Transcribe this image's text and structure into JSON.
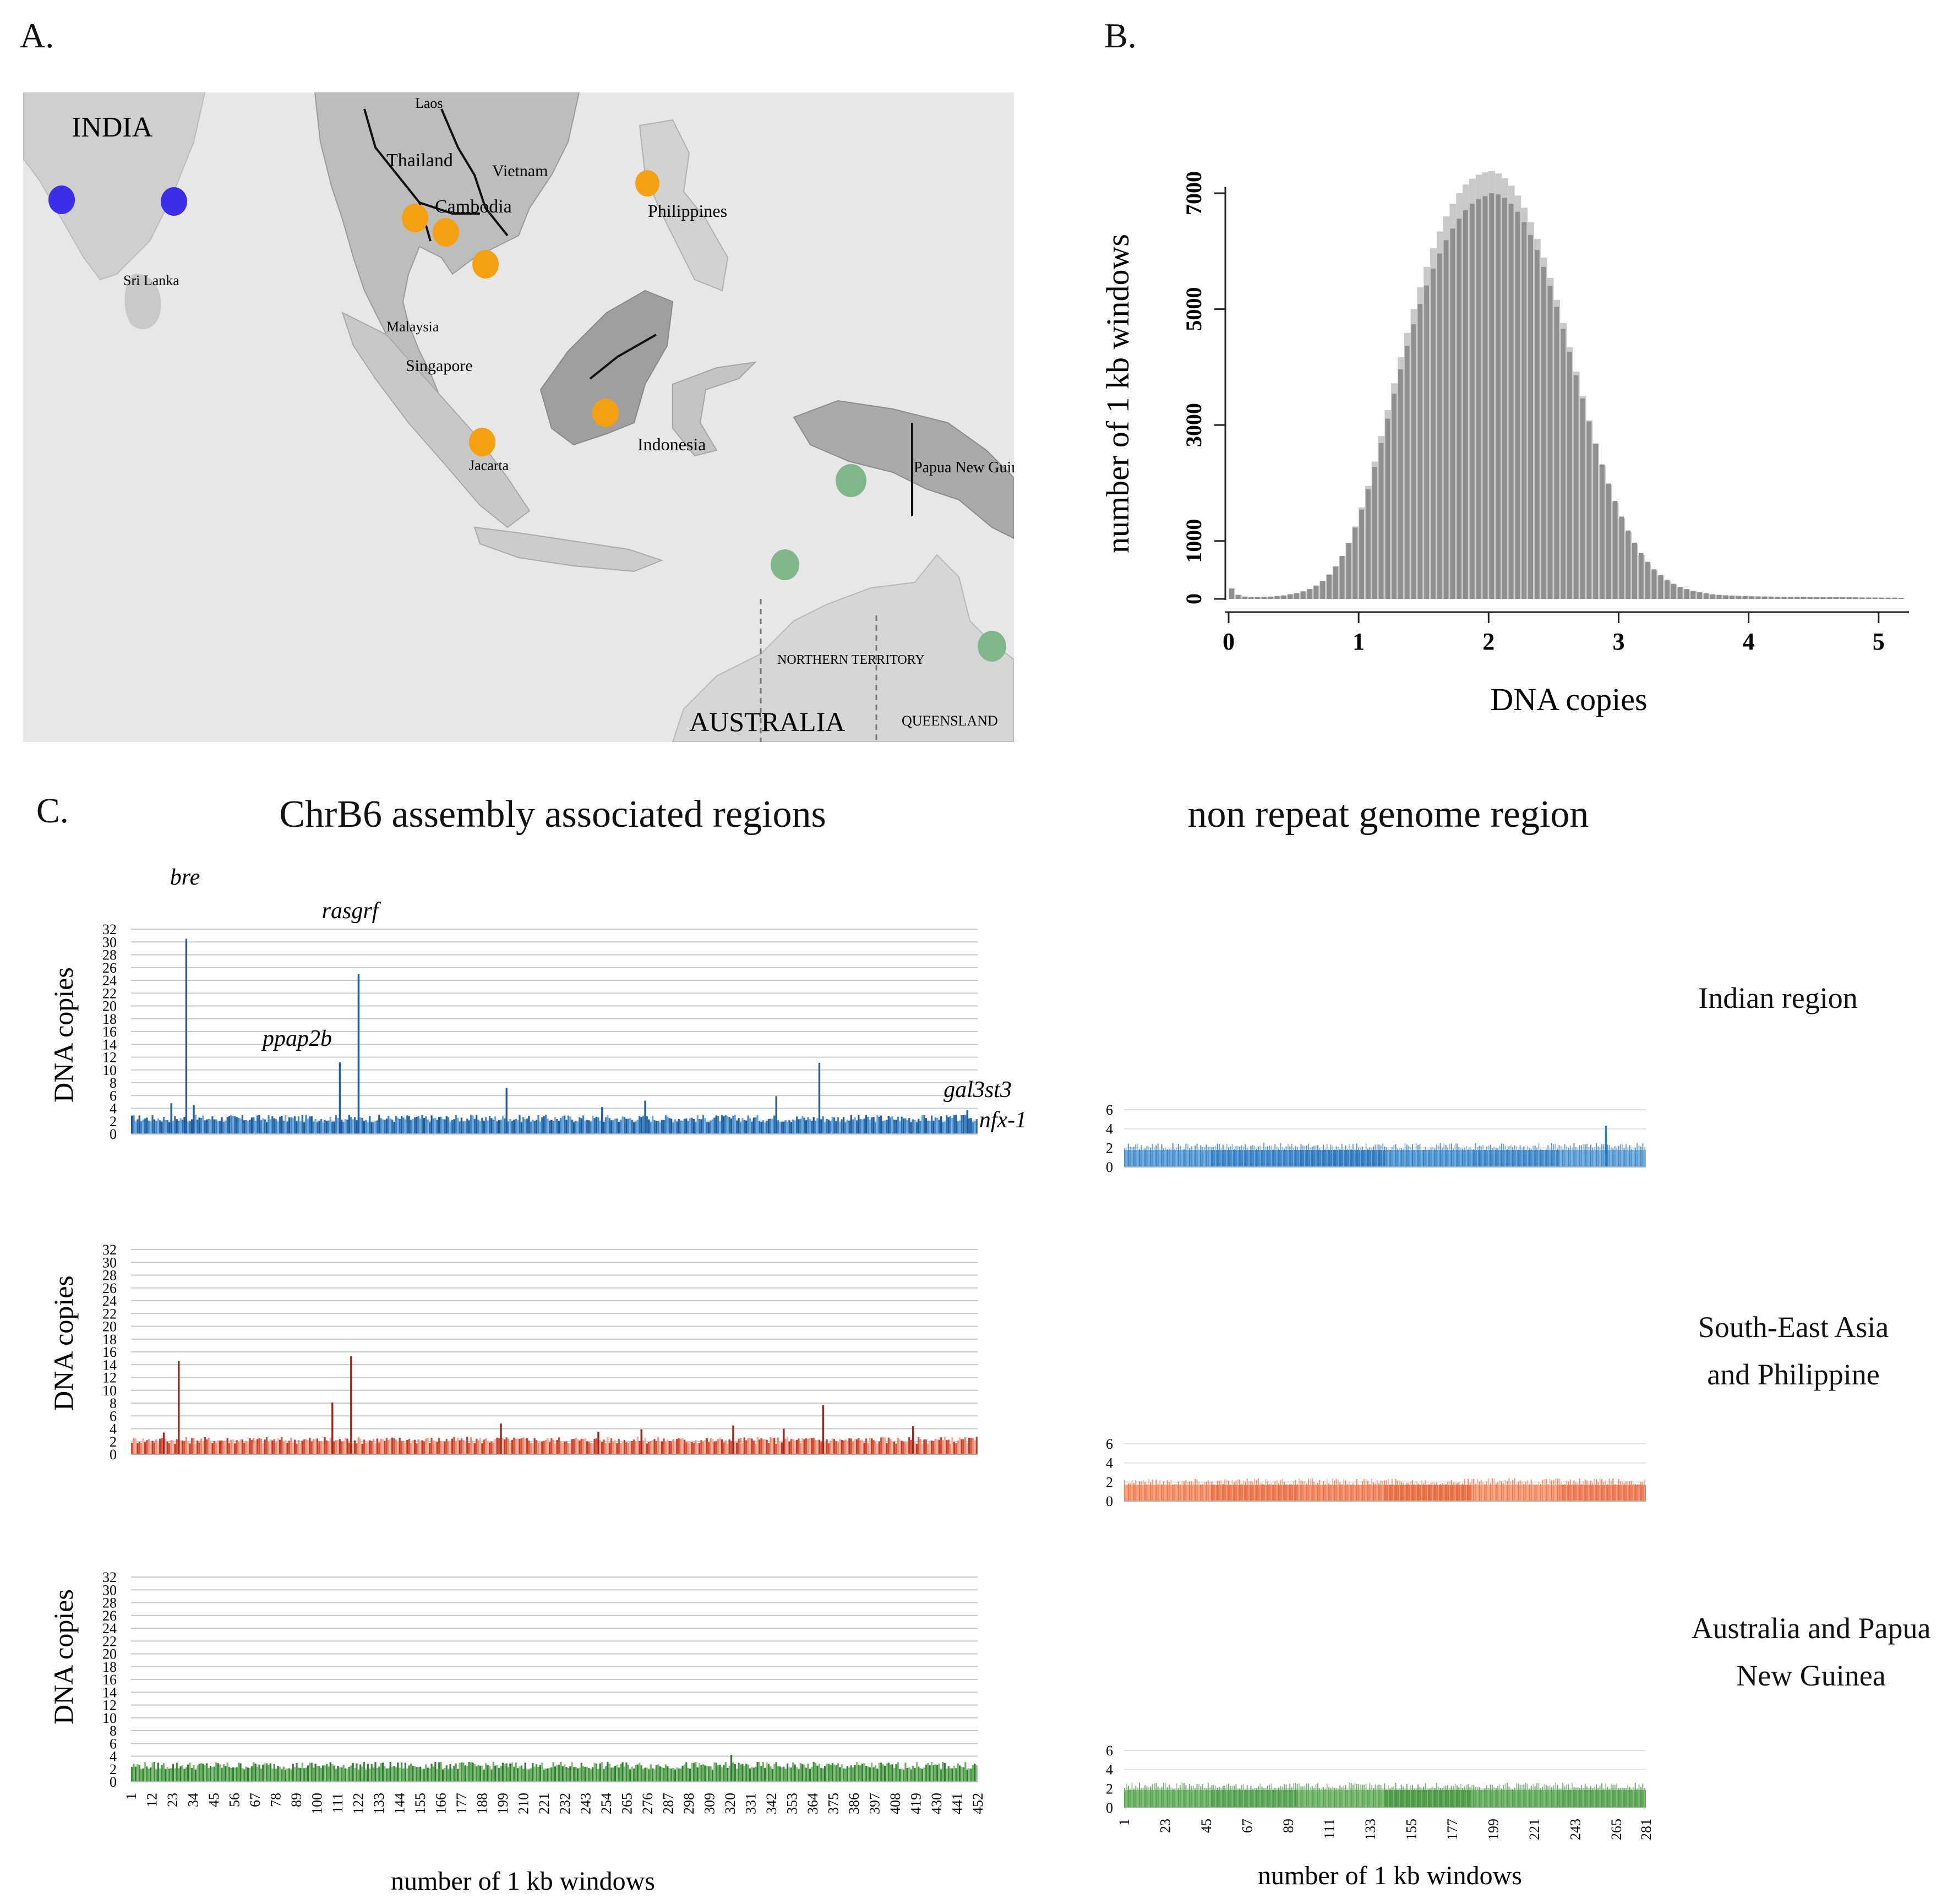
{
  "panels": {
    "a": "A.",
    "b": "B.",
    "c": "C."
  },
  "map": {
    "labels": [
      "INDIA",
      "Sri Lanka",
      "Laos",
      "Thailand",
      "Vietnam",
      "Cambodia",
      "Philippines",
      "Malaysia",
      "Singapore",
      "Indonesia",
      "Jacarta",
      "Papua New Guinea",
      "NORTHERN TERRITORY",
      "AUSTRALIA",
      "QUEENSLAND"
    ],
    "colors": {
      "indian": "#3b2ee8",
      "sea": "#f5a011",
      "aus": "#7fb78a"
    }
  },
  "c": {
    "title_left": "ChrB6 assembly associated regions",
    "title_right": "non repeat genome region",
    "ylabel": "DNA copies",
    "xlabel_left": "number of 1 kb windows",
    "xlabel_right": "number of 1 kb windows",
    "rows": [
      {
        "region": "Indian region"
      },
      {
        "region": "South-East Asia and Philippine"
      },
      {
        "region": "Australia and Papua New Guinea"
      }
    ],
    "genes": [
      "bre",
      "rasgrf",
      "ppap2b",
      "gal3st3",
      "nfx-1"
    ]
  },
  "chart_data": [
    {
      "type": "bar",
      "title": "",
      "xlabel": "DNA copies",
      "ylabel": "number of 1 kb windows",
      "xlim": [
        0,
        5.2
      ],
      "ylim": [
        0,
        7200
      ],
      "xticks": [
        0,
        1,
        2,
        3,
        4,
        5
      ],
      "yticks": [
        0,
        1000,
        3000,
        5000,
        7000
      ],
      "bin_width": 0.05,
      "x": [
        0.0,
        0.05,
        0.1,
        0.15,
        0.2,
        0.25,
        0.3,
        0.35,
        0.4,
        0.45,
        0.5,
        0.55,
        0.6,
        0.65,
        0.7,
        0.75,
        0.8,
        0.85,
        0.9,
        0.95,
        1.0,
        1.05,
        1.1,
        1.15,
        1.2,
        1.25,
        1.3,
        1.35,
        1.4,
        1.45,
        1.5,
        1.55,
        1.6,
        1.65,
        1.7,
        1.75,
        1.8,
        1.85,
        1.9,
        1.95,
        2.0,
        2.05,
        2.1,
        2.15,
        2.2,
        2.25,
        2.3,
        2.35,
        2.4,
        2.45,
        2.5,
        2.55,
        2.6,
        2.65,
        2.7,
        2.75,
        2.8,
        2.85,
        2.9,
        2.95,
        3.0,
        3.05,
        3.1,
        3.15,
        3.2,
        3.25,
        3.3,
        3.35,
        3.4,
        3.45,
        3.5,
        3.55,
        3.6,
        3.65,
        3.7,
        3.75,
        3.8,
        3.85,
        3.9,
        3.95,
        4.0,
        4.05,
        4.1,
        4.15,
        4.2,
        4.25,
        4.3,
        4.35,
        4.4,
        4.45,
        4.5,
        4.55,
        4.6,
        4.65,
        4.7,
        4.75,
        4.8,
        4.85,
        4.9,
        4.95,
        5.0,
        5.05,
        5.1,
        5.15
      ],
      "values": [
        180,
        70,
        40,
        30,
        30,
        35,
        40,
        50,
        60,
        80,
        100,
        130,
        170,
        230,
        310,
        420,
        560,
        740,
        960,
        1230,
        1540,
        1890,
        2280,
        2690,
        3110,
        3540,
        3960,
        4360,
        4740,
        5090,
        5410,
        5700,
        5960,
        6190,
        6390,
        6560,
        6710,
        6820,
        6900,
        6950,
        7000,
        6980,
        6920,
        6820,
        6680,
        6500,
        6280,
        6020,
        5730,
        5400,
        5040,
        4660,
        4260,
        3860,
        3460,
        3060,
        2680,
        2320,
        1990,
        1690,
        1420,
        1180,
        970,
        790,
        640,
        510,
        410,
        330,
        260,
        210,
        170,
        140,
        115,
        95,
        80,
        70,
        62,
        56,
        52,
        48,
        45,
        43,
        41,
        40,
        38,
        37,
        36,
        35,
        34,
        33,
        32,
        31,
        30,
        29,
        28,
        27,
        26,
        25,
        24,
        23,
        22,
        22,
        21,
        20
      ],
      "values_light": [
        180,
        70,
        40,
        30,
        30,
        35,
        40,
        50,
        60,
        80,
        100,
        130,
        170,
        230,
        310,
        420,
        560,
        740,
        970,
        1250,
        1580,
        1950,
        2370,
        2810,
        3260,
        3720,
        4170,
        4590,
        5000,
        5380,
        5730,
        6050,
        6340,
        6600,
        6820,
        7000,
        7150,
        7250,
        7320,
        7360,
        7380,
        7340,
        7260,
        7130,
        6960,
        6750,
        6500,
        6210,
        5890,
        5540,
        5160,
        4760,
        4340,
        3920,
        3500,
        3080,
        2680,
        2310,
        1970,
        1660,
        1390,
        1150,
        940,
        760,
        610,
        490,
        390,
        310,
        250,
        200,
        160,
        130,
        108,
        90,
        76,
        66,
        59,
        54,
        50,
        47,
        44,
        42,
        40,
        39,
        37,
        36,
        35,
        34,
        33,
        32,
        31,
        30,
        29,
        28,
        27,
        26,
        25,
        24,
        23,
        22,
        22,
        21,
        20,
        19
      ]
    },
    {
      "type": "bar",
      "series": "ChrB6 assembly associated regions",
      "region": "Indian region",
      "ylabel": "DNA copies",
      "ylim": [
        0,
        32
      ],
      "yticks": [
        0,
        2,
        4,
        6,
        8,
        10,
        12,
        14,
        16,
        18,
        20,
        22,
        24,
        26,
        28,
        30,
        32
      ],
      "n_windows": 452,
      "baseline": 2.4,
      "peaks": [
        {
          "window": 22,
          "value": 4.8
        },
        {
          "window": 30,
          "value": 30.5,
          "label": "bre"
        },
        {
          "window": 34,
          "value": 4.5
        },
        {
          "window": 112,
          "value": 11.2,
          "label": "ppap2b"
        },
        {
          "window": 122,
          "value": 25,
          "label": "rasgrf"
        },
        {
          "window": 201,
          "value": 7.2
        },
        {
          "window": 252,
          "value": 4.2
        },
        {
          "window": 275,
          "value": 5.2
        },
        {
          "window": 345,
          "value": 5.9
        },
        {
          "window": 368,
          "value": 11.1,
          "label": "gal3st3"
        },
        {
          "window": 447,
          "value": 3.7,
          "label": "nfx-1"
        }
      ]
    },
    {
      "type": "bar",
      "series": "ChrB6 assembly associated regions",
      "region": "South-East Asia and Philippine",
      "ylabel": "DNA copies",
      "ylim": [
        0,
        32
      ],
      "yticks": [
        0,
        2,
        4,
        6,
        8,
        10,
        12,
        14,
        16,
        18,
        20,
        22,
        24,
        26,
        28,
        30,
        32
      ],
      "n_windows": 452,
      "baseline": 2.2,
      "peaks": [
        {
          "window": 18,
          "value": 3.4
        },
        {
          "window": 26,
          "value": 14.6
        },
        {
          "window": 108,
          "value": 8.1
        },
        {
          "window": 118,
          "value": 15.3
        },
        {
          "window": 198,
          "value": 4.8
        },
        {
          "window": 250,
          "value": 3.5
        },
        {
          "window": 273,
          "value": 3.9
        },
        {
          "window": 322,
          "value": 4.5
        },
        {
          "window": 349,
          "value": 4
        },
        {
          "window": 370,
          "value": 7.7
        },
        {
          "window": 418,
          "value": 4.4
        }
      ]
    },
    {
      "type": "bar",
      "series": "ChrB6 assembly associated regions",
      "region": "Australia and Papua New Guinea",
      "ylabel": "DNA copies",
      "xlabel": "number of 1 kb windows",
      "ylim": [
        0,
        32
      ],
      "yticks": [
        0,
        2,
        4,
        6,
        8,
        10,
        12,
        14,
        16,
        18,
        20,
        22,
        24,
        26,
        28,
        30,
        32
      ],
      "xticks": [
        1,
        12,
        23,
        34,
        45,
        56,
        67,
        78,
        89,
        100,
        111,
        122,
        133,
        144,
        155,
        166,
        177,
        188,
        199,
        210,
        221,
        232,
        243,
        254,
        265,
        276,
        287,
        298,
        309,
        320,
        331,
        342,
        353,
        364,
        375,
        386,
        397,
        408,
        419,
        430,
        441,
        452
      ],
      "n_windows": 452,
      "baseline": 2.5,
      "peaks": [
        {
          "window": 321,
          "value": 4.2
        }
      ]
    },
    {
      "type": "bar",
      "series": "non repeat genome region",
      "region": "Indian region",
      "ylim": [
        0,
        6
      ],
      "yticks": [
        0,
        2,
        4,
        6
      ],
      "n_windows": 281,
      "baseline": 2.1,
      "peaks": [
        {
          "window": 260,
          "value": 4.3
        }
      ]
    },
    {
      "type": "bar",
      "series": "non repeat genome region",
      "region": "South-East Asia and Philippine",
      "ylim": [
        0,
        6
      ],
      "yticks": [
        0,
        2,
        4,
        6
      ],
      "n_windows": 281,
      "baseline": 2.0,
      "peaks": []
    },
    {
      "type": "bar",
      "series": "non repeat genome region",
      "region": "Australia and Papua New Guinea",
      "xlabel": "number of 1 kb windows",
      "ylim": [
        0,
        6
      ],
      "yticks": [
        0,
        2,
        4,
        6
      ],
      "xticks": [
        1,
        23,
        45,
        67,
        89,
        111,
        133,
        155,
        177,
        199,
        221,
        243,
        265,
        281
      ],
      "n_windows": 281,
      "baseline": 2.2,
      "peaks": []
    }
  ]
}
